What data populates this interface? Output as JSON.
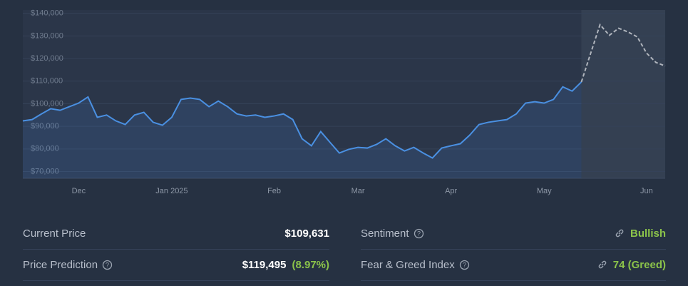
{
  "chart_data": {
    "type": "line",
    "categories": [
      null,
      null,
      null,
      null,
      null,
      null,
      "Dec",
      null,
      null,
      null,
      null,
      null,
      null,
      null,
      null,
      null,
      "Jan 2025",
      null,
      null,
      null,
      null,
      null,
      null,
      null,
      null,
      null,
      null,
      "Feb",
      null,
      null,
      null,
      null,
      null,
      null,
      null,
      null,
      "Mar",
      null,
      null,
      null,
      null,
      null,
      null,
      null,
      null,
      null,
      "Apr",
      null,
      null,
      null,
      null,
      null,
      null,
      null,
      null,
      null,
      "May",
      null,
      null,
      null,
      null,
      null,
      null,
      null,
      null,
      null,
      null,
      "Jun",
      null,
      null
    ],
    "series": [
      {
        "color": "#4a90e2",
        "values": [
          92400,
          93000,
          95500,
          97800,
          97100,
          98700,
          100300,
          103000,
          94000,
          95000,
          92400,
          90800,
          95000,
          96200,
          91800,
          90500,
          94000,
          101900,
          102500,
          101900,
          98700,
          101200,
          98700,
          95500,
          94600,
          95000,
          94000,
          94600,
          95500,
          93000,
          84500,
          81400,
          87700,
          82900,
          78200,
          79800,
          80700,
          80400,
          82000,
          84500,
          81400,
          79100,
          80700,
          78200,
          76000,
          80400,
          81400,
          82300,
          86100,
          90800,
          91800,
          92400,
          93000,
          95500,
          100300,
          100900,
          100300,
          101900,
          107500,
          105600,
          109631,
          null,
          null,
          null,
          null,
          null,
          null,
          null,
          null,
          null
        ]
      },
      {
        "color": "#b0b5bd",
        "dashed": true,
        "values": [
          null,
          null,
          null,
          null,
          null,
          null,
          null,
          null,
          null,
          null,
          null,
          null,
          null,
          null,
          null,
          null,
          null,
          null,
          null,
          null,
          null,
          null,
          null,
          null,
          null,
          null,
          null,
          null,
          null,
          null,
          null,
          null,
          null,
          null,
          null,
          null,
          null,
          null,
          null,
          null,
          null,
          null,
          null,
          null,
          null,
          null,
          null,
          null,
          null,
          null,
          null,
          null,
          null,
          null,
          null,
          null,
          null,
          null,
          null,
          null,
          109631,
          122400,
          135000,
          130300,
          133400,
          131800,
          129600,
          122400,
          118300,
          116700
        ]
      }
    ],
    "ylim": [
      67000,
      141500
    ],
    "yticks": [
      {
        "value": 70000,
        "label": "$70,000"
      },
      {
        "value": 80000,
        "label": "$80,000"
      },
      {
        "value": 90000,
        "label": "$90,000"
      },
      {
        "value": 100000,
        "label": "$100,000"
      },
      {
        "value": 110000,
        "label": "$110,000"
      },
      {
        "value": 120000,
        "label": "$120,000"
      },
      {
        "value": 130000,
        "label": "$130,000"
      },
      {
        "value": 140000,
        "label": "$140,000"
      }
    ],
    "grid": true
  },
  "stats": {
    "current_price": {
      "label": "Current Price",
      "value": "$109,631"
    },
    "price_prediction": {
      "label": "Price Prediction",
      "value": "$119,495",
      "change": "(8.97%)"
    },
    "sentiment": {
      "label": "Sentiment",
      "value": "Bullish"
    },
    "fear_greed": {
      "label": "Fear & Greed Index",
      "value": "74 (Greed)"
    }
  }
}
